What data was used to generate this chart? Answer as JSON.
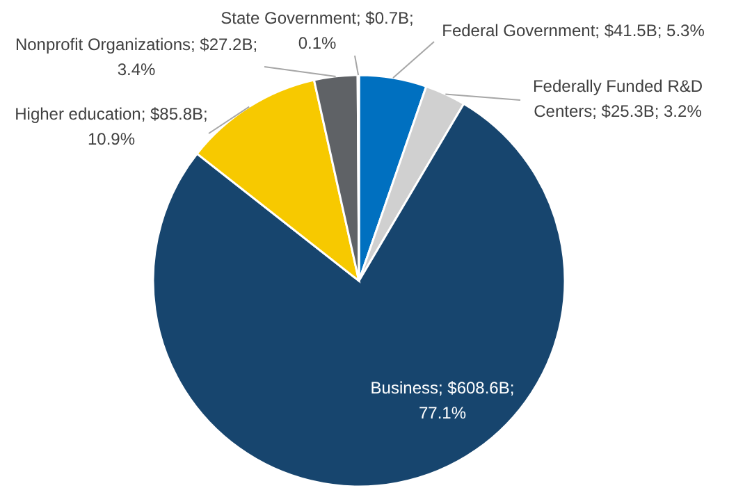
{
  "chart_data": {
    "type": "pie",
    "categories": [
      "Federal Government",
      "Federally Funded R&D Centers",
      "Business",
      "Higher education",
      "Nonprofit Organizations",
      "State Government"
    ],
    "values": [
      5.3,
      3.2,
      77.1,
      10.9,
      3.4,
      0.1
    ],
    "colors": [
      "#0070c0",
      "#d0d0d0",
      "#17456e",
      "#f7c900",
      "#5f6266",
      "#9dc3e6"
    ],
    "value_labels": [
      "$41.5B; 5.3%",
      "$25.3B; 3.2%",
      "$608.6B; 77.1%",
      "$85.8B; 10.9%",
      "$27.2B; 3.4%",
      "$0.7B; 0.1%"
    ]
  }
}
